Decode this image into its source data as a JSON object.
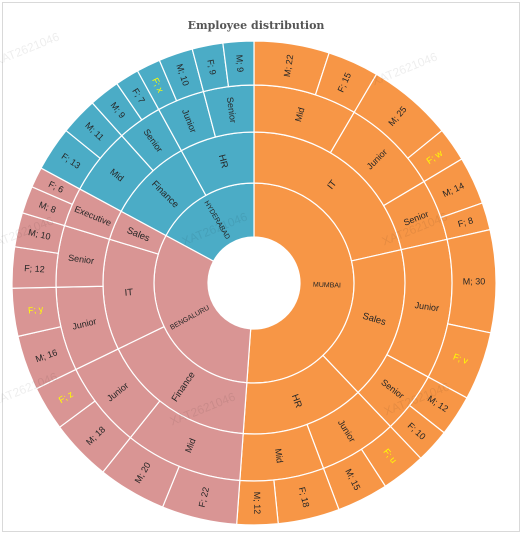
{
  "chart_data": {
    "type": "sunburst",
    "title": "Employee distribution",
    "colors": {
      "MUMBAI": "#F79646",
      "BENGALURU": "#D99594",
      "HYDERABAD": "#4BACC6"
    },
    "highlight_color": "#FFFF00",
    "watermark": "XAT2621046",
    "tree": [
      {
        "name": "MUMBAI",
        "children": [
          {
            "name": "IT",
            "children": [
              {
                "name": "Mid",
                "children": [
                  {
                    "name": "M; 22",
                    "value": 22
                  },
                  {
                    "name": "F; 15",
                    "value": 15
                  }
                ]
              },
              {
                "name": "Junior",
                "children": [
                  {
                    "name": "M; 25",
                    "value": 25
                  },
                  {
                    "name": "F; w",
                    "value": 10,
                    "highlight": true
                  }
                ]
              },
              {
                "name": "Senior",
                "children": [
                  {
                    "name": "M; 14",
                    "value": 14
                  },
                  {
                    "name": "F; 8",
                    "value": 8
                  }
                ]
              }
            ]
          },
          {
            "name": "Sales",
            "children": [
              {
                "name": "Junior",
                "children": [
                  {
                    "name": "M; 30",
                    "value": 30
                  },
                  {
                    "name": "F; v",
                    "value": 20,
                    "highlight": true
                  }
                ]
              },
              {
                "name": "Senior",
                "children": [
                  {
                    "name": "M; 12",
                    "value": 12
                  },
                  {
                    "name": "F; 10",
                    "value": 10
                  }
                ]
              }
            ]
          },
          {
            "name": "HR",
            "children": [
              {
                "name": "Junior",
                "children": [
                  {
                    "name": "F; u",
                    "value": 13,
                    "highlight": true
                  },
                  {
                    "name": "M; 15",
                    "value": 15
                  }
                ]
              },
              {
                "name": "Mid",
                "children": [
                  {
                    "name": "F; 18",
                    "value": 18
                  },
                  {
                    "name": "M; 12",
                    "value": 12
                  }
                ]
              }
            ]
          }
        ]
      },
      {
        "name": "BENGALURU",
        "children": [
          {
            "name": "Finance",
            "children": [
              {
                "name": "Mid",
                "children": [
                  {
                    "name": "F; 22",
                    "value": 22
                  },
                  {
                    "name": "M; 20",
                    "value": 20
                  }
                ]
              },
              {
                "name": "Junior",
                "children": [
                  {
                    "name": "M; 18",
                    "value": 18
                  },
                  {
                    "name": "F; z",
                    "value": 13,
                    "highlight": true
                  }
                ]
              }
            ]
          },
          {
            "name": "IT",
            "children": [
              {
                "name": "Junior",
                "children": [
                  {
                    "name": "M; 16",
                    "value": 16
                  },
                  {
                    "name": "F; y",
                    "value": 14,
                    "highlight": true
                  }
                ]
              },
              {
                "name": "Senior",
                "children": [
                  {
                    "name": "F; 12",
                    "value": 12
                  },
                  {
                    "name": "M; 10",
                    "value": 10
                  }
                ]
              }
            ]
          },
          {
            "name": "Sales",
            "children": [
              {
                "name": "Executive",
                "children": [
                  {
                    "name": "M; 8",
                    "value": 8
                  },
                  {
                    "name": "F; 6",
                    "value": 6
                  }
                ]
              }
            ]
          }
        ]
      },
      {
        "name": "HYDERABAD",
        "children": [
          {
            "name": "Finance",
            "children": [
              {
                "name": "Mid",
                "children": [
                  {
                    "name": "F; 13",
                    "value": 13
                  },
                  {
                    "name": "M; 11",
                    "value": 11
                  }
                ]
              },
              {
                "name": "Senior",
                "children": [
                  {
                    "name": "M; 9",
                    "value": 9
                  },
                  {
                    "name": "F; 7",
                    "value": 7
                  }
                ]
              }
            ]
          },
          {
            "name": "HR",
            "children": [
              {
                "name": "Junior",
                "children": [
                  {
                    "name": "F; x",
                    "value": 7,
                    "highlight": true
                  },
                  {
                    "name": "M; 10",
                    "value": 10
                  }
                ]
              },
              {
                "name": "Senior",
                "children": [
                  {
                    "name": "F; 9",
                    "value": 9
                  },
                  {
                    "name": "M; 9",
                    "value": 9
                  }
                ]
              }
            ]
          }
        ]
      }
    ]
  }
}
